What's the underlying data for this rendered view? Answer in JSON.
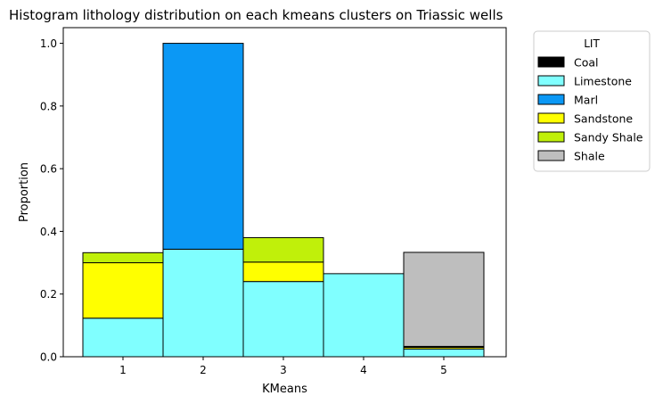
{
  "chart_data": {
    "type": "bar",
    "stacked": true,
    "title": "Histogram lithology distribution on each kmeans clusters on Triassic wells",
    "xlabel": "KMeans",
    "ylabel": "Proportion",
    "categories": [
      "1",
      "2",
      "3",
      "4",
      "5"
    ],
    "ylim": [
      0,
      1.05
    ],
    "yticks": [
      "0.0",
      "0.2",
      "0.4",
      "0.6",
      "0.8",
      "1.0"
    ],
    "grid": false,
    "legend": {
      "title": "LIT",
      "placement": "outside-right-top"
    },
    "series": [
      {
        "name": "Coal",
        "color": "#000000",
        "values": [
          0,
          0,
          0,
          0,
          0
        ]
      },
      {
        "name": "Limestone",
        "color": "#80ffff",
        "values": [
          0.123,
          0.343,
          0.24,
          0.265,
          0.025
        ]
      },
      {
        "name": "Marl",
        "color": "#0b98f5",
        "values": [
          0,
          0.657,
          0,
          0,
          0
        ]
      },
      {
        "name": "Sandstone",
        "color": "#ffff00",
        "values": [
          0.177,
          0,
          0.062,
          0,
          0.005
        ]
      },
      {
        "name": "Sandy Shale",
        "color": "#c0f00a",
        "values": [
          0.032,
          0,
          0.078,
          0,
          0.003
        ]
      },
      {
        "name": "Shale",
        "color": "#bebebe",
        "values": [
          0,
          0,
          0,
          0,
          0.3
        ]
      }
    ]
  }
}
